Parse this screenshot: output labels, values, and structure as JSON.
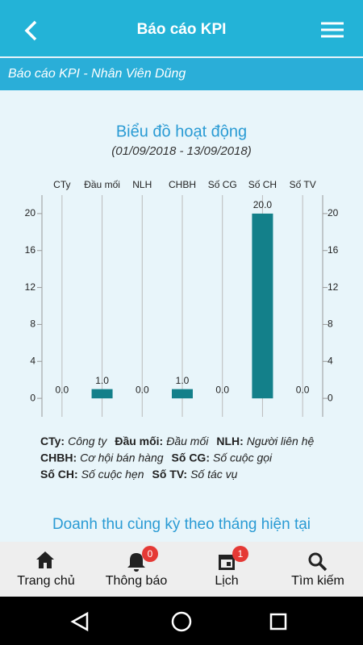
{
  "header": {
    "title": "Báo cáo KPI"
  },
  "subheader": "Báo cáo KPI - Nhân Viên Dũng",
  "chart_data": {
    "type": "bar",
    "title": "Biểu đồ hoạt động",
    "subtitle": "(01/09/2018 - 13/09/2018)",
    "categories": [
      "CTy",
      "Đầu mối",
      "NLH",
      "CHBH",
      "Số CG",
      "Số CH",
      "Số TV"
    ],
    "values": [
      0,
      1,
      0,
      1,
      0,
      20,
      0
    ],
    "value_labels": [
      "0.0",
      "1.0",
      "0.0",
      "1.0",
      "0.0",
      "20.0",
      "0.0"
    ],
    "color": "#13808a",
    "ylim": [
      -2,
      22
    ],
    "yticks": [
      0,
      4,
      8,
      12,
      16,
      20
    ],
    "y2lim": [
      -2,
      22
    ],
    "y2ticks": [
      0,
      4,
      8,
      12,
      16,
      20
    ]
  },
  "legend": [
    [
      {
        "abbr": "CTy:",
        "desc": "Công ty"
      },
      {
        "abbr": "Đầu mối:",
        "desc": "Đầu mối"
      },
      {
        "abbr": "NLH:",
        "desc": "Người liên hệ"
      }
    ],
    [
      {
        "abbr": "CHBH:",
        "desc": "Cơ hội bán hàng"
      },
      {
        "abbr": "Số CG:",
        "desc": "Số cuộc gọi"
      }
    ],
    [
      {
        "abbr": "Số CH:",
        "desc": "Số cuộc hẹn"
      },
      {
        "abbr": "Số TV:",
        "desc": "Số tác vụ"
      }
    ]
  ],
  "section_title": "Doanh thu cùng kỳ theo tháng hiện tại",
  "nav": [
    {
      "label": "Trang chủ"
    },
    {
      "label": "Thông báo",
      "badge": "0"
    },
    {
      "label": "Lịch",
      "badge": "1"
    },
    {
      "label": "Tìm kiếm"
    }
  ]
}
